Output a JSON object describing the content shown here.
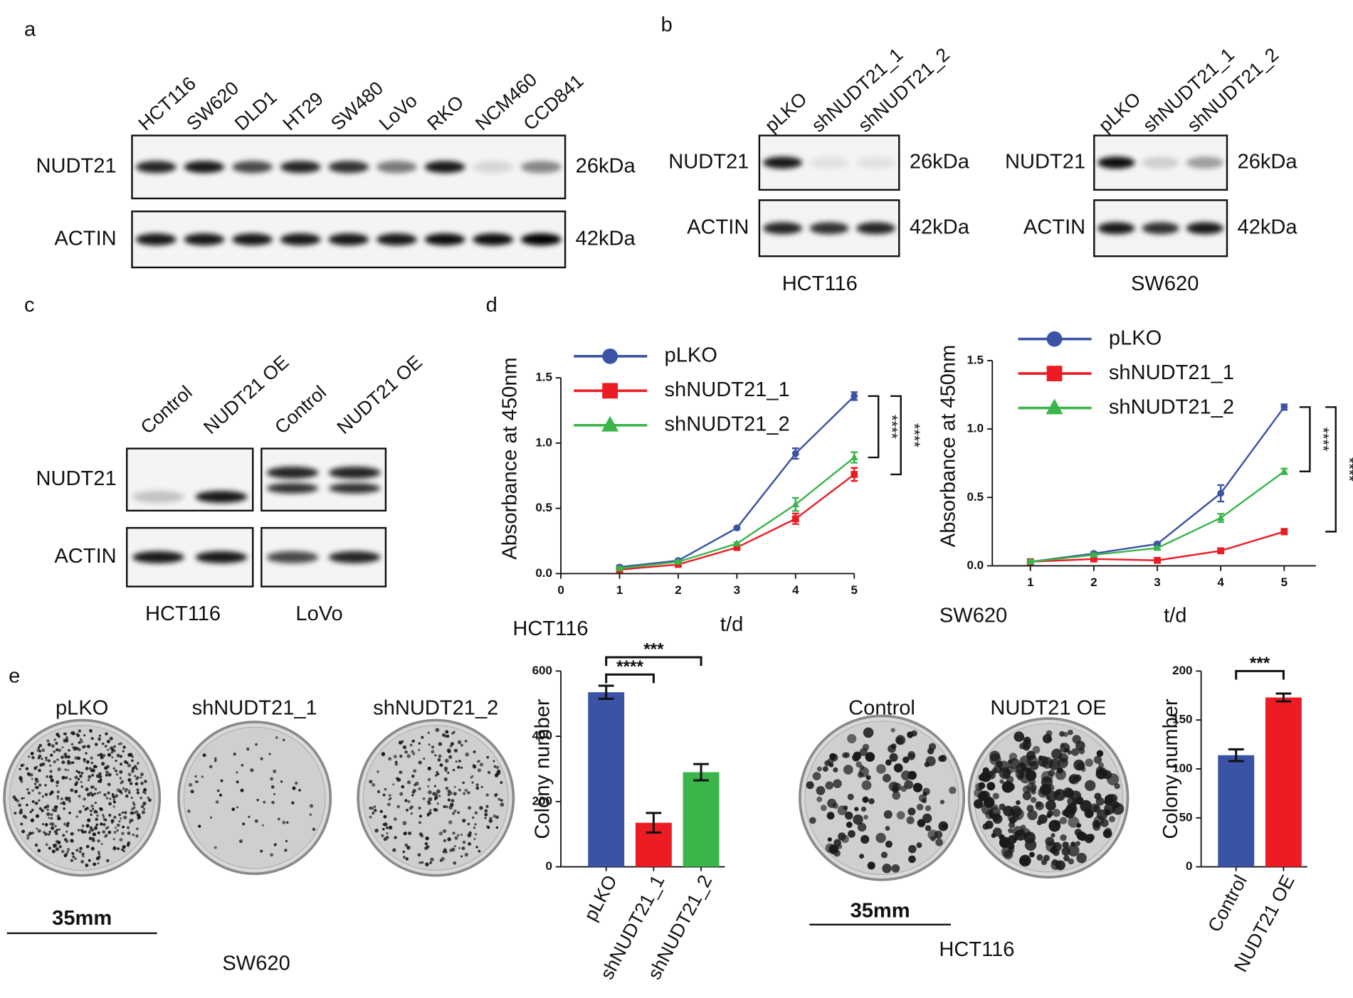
{
  "panels": {
    "a": {
      "letter": "a",
      "lanes": [
        "HCT116",
        "SW620",
        "DLD1",
        "HT29",
        "SW480",
        "LoVo",
        "RKO",
        "NCM460",
        "CCD841"
      ],
      "rows": [
        "NUDT21",
        "ACTIN"
      ],
      "sizes": [
        "26kDa",
        "42kDa"
      ]
    },
    "b": {
      "letter": "b",
      "blots": [
        {
          "lanes": [
            "pLKO",
            "shNUDT21_1",
            "shNUDT21_2"
          ],
          "rows": [
            "NUDT21",
            "ACTIN"
          ],
          "sizes": [
            "26kDa",
            "42kDa"
          ],
          "caption": "HCT116"
        },
        {
          "lanes": [
            "pLKO",
            "shNUDT21_1",
            "shNUDT21_2"
          ],
          "rows": [
            "NUDT21",
            "ACTIN"
          ],
          "sizes": [
            "26kDa",
            "42kDa"
          ],
          "caption": "SW620"
        }
      ]
    },
    "c": {
      "letter": "c",
      "blots": [
        {
          "lanes": [
            "Control",
            "NUDT21 OE"
          ],
          "rows": [
            "NUDT21",
            "ACTIN"
          ],
          "caption": "HCT116"
        },
        {
          "lanes": [
            "Control",
            "NUDT21 OE"
          ],
          "caption": "LoVo"
        }
      ]
    },
    "d": {
      "letter": "d"
    },
    "e": {
      "letter": "e",
      "plates": [
        {
          "labels": [
            "pLKO",
            "shNUDT21_1",
            "shNUDT21_2"
          ],
          "scale": "35mm",
          "caption": "SW620"
        },
        {
          "labels": [
            "Control",
            "NUDT21 OE"
          ],
          "scale": "35mm",
          "caption": "HCT116"
        }
      ]
    }
  },
  "chart_data": [
    {
      "type": "line",
      "caption": "HCT116",
      "xlabel": "t/d",
      "ylabel": "Absorbance at 450nm",
      "x": [
        1,
        2,
        3,
        4,
        5
      ],
      "xlim": [
        0,
        5
      ],
      "xticks": [
        0,
        1,
        2,
        3,
        4,
        5
      ],
      "ylim": [
        0,
        1.5
      ],
      "yticks": [
        {
          "value": 0,
          "label": "0.0"
        },
        0.5,
        {
          "value": 1,
          "label": "1.0"
        },
        1.5
      ],
      "series": [
        {
          "name": "pLKO",
          "color": "#3a53a4",
          "marker": "circle",
          "values": [
            0.05,
            0.1,
            0.35,
            0.92,
            1.36
          ],
          "errors": [
            0.01,
            0.01,
            0.01,
            0.04,
            0.03
          ]
        },
        {
          "name": "shNUDT21_1",
          "color": "#ed1c24",
          "marker": "square",
          "values": [
            0.03,
            0.07,
            0.2,
            0.42,
            0.76
          ],
          "errors": [
            0.01,
            0.01,
            0.02,
            0.04,
            0.05
          ]
        },
        {
          "name": "shNUDT21_2",
          "color": "#3ab54a",
          "marker": "triangle",
          "values": [
            0.04,
            0.09,
            0.23,
            0.53,
            0.89
          ],
          "errors": [
            0.01,
            0.01,
            0.01,
            0.05,
            0.04
          ]
        }
      ],
      "annotations": [
        "****",
        "****"
      ]
    },
    {
      "type": "line",
      "caption": "SW620",
      "xlabel": "t/d",
      "ylabel": "Absorbance at 450nm",
      "x": [
        1,
        2,
        3,
        4,
        5
      ],
      "xlim": [
        0.4,
        5.5
      ],
      "xticks": [
        1,
        2,
        3,
        4,
        5
      ],
      "ylim": [
        0,
        1.5
      ],
      "yticks": [
        {
          "value": 0,
          "label": "0.0"
        },
        0.5,
        {
          "value": 1,
          "label": "1.0"
        },
        1.5
      ],
      "series": [
        {
          "name": "pLKO",
          "color": "#3a53a4",
          "marker": "circle",
          "values": [
            0.03,
            0.09,
            0.16,
            0.53,
            1.16
          ],
          "errors": [
            0.01,
            0.01,
            0.01,
            0.06,
            0.02
          ]
        },
        {
          "name": "shNUDT21_1",
          "color": "#ed1c24",
          "marker": "square",
          "values": [
            0.03,
            0.05,
            0.04,
            0.11,
            0.25
          ],
          "errors": [
            0.01,
            0.01,
            0.01,
            0.01,
            0.02
          ]
        },
        {
          "name": "shNUDT21_2",
          "color": "#3ab54a",
          "marker": "triangle",
          "values": [
            0.03,
            0.08,
            0.13,
            0.35,
            0.69
          ],
          "errors": [
            0.01,
            0.01,
            0.01,
            0.03,
            0.02
          ]
        }
      ],
      "annotations": [
        "****",
        "****"
      ]
    },
    {
      "type": "bar",
      "ylabel": "Colony number",
      "categories": [
        "pLKO",
        "shNUDT21_1",
        "shNUDT21_2"
      ],
      "values": [
        535,
        135,
        290
      ],
      "errors": [
        20,
        30,
        25
      ],
      "colors": [
        "#3a53a4",
        "#ed1c24",
        "#3ab54a"
      ],
      "ylim": [
        0,
        600
      ],
      "yticks": [
        0,
        200,
        400,
        600
      ],
      "annotations": [
        "***",
        "****"
      ]
    },
    {
      "type": "bar",
      "ylabel": "Colony number",
      "categories": [
        "Control",
        "NUDT21 OE"
      ],
      "values": [
        114,
        173
      ],
      "errors": [
        6,
        4
      ],
      "colors": [
        "#3a53a4",
        "#ed1c24"
      ],
      "ylim": [
        0,
        200
      ],
      "yticks": [
        0,
        50,
        100,
        150,
        200
      ],
      "annotations": [
        "***"
      ]
    }
  ]
}
